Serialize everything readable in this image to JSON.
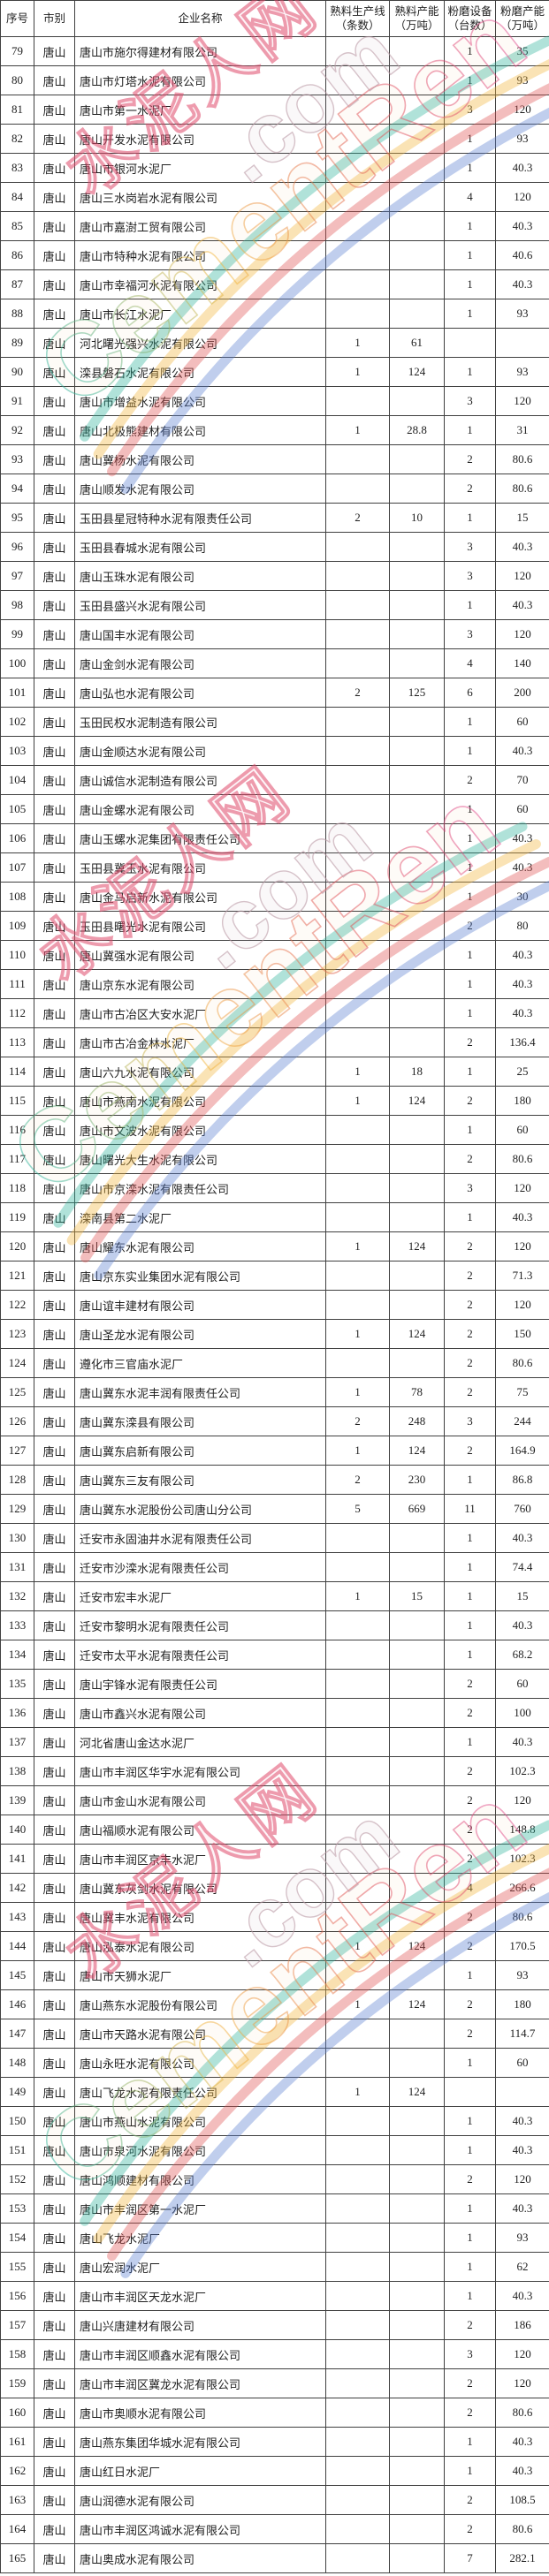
{
  "watermark": {
    "site_cn": "水泥人网",
    "site_en": "CementRen",
    "dot_com": ".com"
  },
  "table": {
    "columns": [
      "序号",
      "市别",
      "企业名称",
      "熟料生产线\n（条数）",
      "熟料产能\n（万吨）",
      "粉磨设备\n（台数）",
      "粉磨产能\n（万吨）"
    ],
    "rows": [
      [
        "79",
        "唐山",
        "唐山市施尔得建材有限公司",
        "",
        "",
        "1",
        "35"
      ],
      [
        "80",
        "唐山",
        "唐山市灯塔水泥有限公司",
        "",
        "",
        "1",
        "93"
      ],
      [
        "81",
        "唐山",
        "唐山市第一水泥厂",
        "",
        "",
        "3",
        "120"
      ],
      [
        "82",
        "唐山",
        "唐山开发水泥有限公司",
        "",
        "",
        "1",
        "93"
      ],
      [
        "83",
        "唐山",
        "唐山市银河水泥厂",
        "",
        "",
        "1",
        "40.3"
      ],
      [
        "84",
        "唐山",
        "唐山三水岗岩水泥有限公司",
        "",
        "",
        "4",
        "120"
      ],
      [
        "85",
        "唐山",
        "唐山市嘉澍工贸有限公司",
        "",
        "",
        "1",
        "40.3"
      ],
      [
        "86",
        "唐山",
        "唐山市特种水泥有限公司",
        "",
        "",
        "1",
        "40.6"
      ],
      [
        "87",
        "唐山",
        "唐山市幸福河水泥有限公司",
        "",
        "",
        "1",
        "40.3"
      ],
      [
        "88",
        "唐山",
        "唐山市长江水泥厂",
        "",
        "",
        "1",
        "93"
      ],
      [
        "89",
        "唐山",
        "河北曙光强兴水泥有限公司",
        "1",
        "61",
        "",
        ""
      ],
      [
        "90",
        "唐山",
        "滦县磐石水泥有限公司",
        "1",
        "124",
        "1",
        "93"
      ],
      [
        "91",
        "唐山",
        "唐山市增益水泥有限公司",
        "",
        "",
        "3",
        "120"
      ],
      [
        "92",
        "唐山",
        "唐山北极熊建材有限公司",
        "1",
        "28.8",
        "1",
        "31"
      ],
      [
        "93",
        "唐山",
        "唐山冀杨水泥有限公司",
        "",
        "",
        "2",
        "80.6"
      ],
      [
        "94",
        "唐山",
        "唐山顺发水泥有限公司",
        "",
        "",
        "2",
        "80.6"
      ],
      [
        "95",
        "唐山",
        "玉田县星冠特种水泥有限责任公司",
        "2",
        "10",
        "1",
        "15"
      ],
      [
        "96",
        "唐山",
        "玉田县春城水泥有限公司",
        "",
        "",
        "3",
        "40.3"
      ],
      [
        "97",
        "唐山",
        "唐山玉珠水泥有限公司",
        "",
        "",
        "3",
        "120"
      ],
      [
        "98",
        "唐山",
        "玉田县盛兴水泥有限公司",
        "",
        "",
        "1",
        "40.3"
      ],
      [
        "99",
        "唐山",
        "唐山国丰水泥有限公司",
        "",
        "",
        "3",
        "120"
      ],
      [
        "100",
        "唐山",
        "唐山金剑水泥有限公司",
        "",
        "",
        "4",
        "140"
      ],
      [
        "101",
        "唐山",
        "唐山弘也水泥有限公司",
        "2",
        "125",
        "6",
        "200"
      ],
      [
        "102",
        "唐山",
        "玉田民权水泥制造有限公司",
        "",
        "",
        "1",
        "60"
      ],
      [
        "103",
        "唐山",
        "唐山金顺达水泥有限公司",
        "",
        "",
        "1",
        "40.3"
      ],
      [
        "104",
        "唐山",
        "唐山诚信水泥制造有限公司",
        "",
        "",
        "2",
        "70"
      ],
      [
        "105",
        "唐山",
        "唐山金螺水泥有限公司",
        "",
        "",
        "1",
        "60"
      ],
      [
        "106",
        "唐山",
        "唐山玉螺水泥集团有限责任公司",
        "",
        "",
        "1",
        "40.3"
      ],
      [
        "107",
        "唐山",
        "玉田县冀玉水泥有限公司",
        "",
        "",
        "1",
        "40.3"
      ],
      [
        "108",
        "唐山",
        "唐山金马启新水泥有限公司",
        "",
        "",
        "1",
        "30"
      ],
      [
        "109",
        "唐山",
        "玉田县曙光水泥有限公司",
        "",
        "",
        "2",
        "80"
      ],
      [
        "110",
        "唐山",
        "唐山冀强水泥有限公司",
        "",
        "",
        "1",
        "40.3"
      ],
      [
        "111",
        "唐山",
        "唐山京东水泥有限公司",
        "",
        "",
        "1",
        "40.3"
      ],
      [
        "112",
        "唐山",
        "唐山市古冶区大安水泥厂",
        "",
        "",
        "1",
        "40.3"
      ],
      [
        "113",
        "唐山",
        "唐山市古冶金林水泥厂",
        "",
        "",
        "2",
        "136.4"
      ],
      [
        "114",
        "唐山",
        "唐山六九水泥有限公司",
        "1",
        "18",
        "1",
        "25"
      ],
      [
        "115",
        "唐山",
        "唐山市燕南水泥有限公司",
        "1",
        "124",
        "2",
        "180"
      ],
      [
        "116",
        "唐山",
        "唐山市文波水泥有限公司",
        "",
        "",
        "1",
        "60"
      ],
      [
        "117",
        "唐山",
        "唐山曙光大生水泥有限公司",
        "",
        "",
        "2",
        "80.6"
      ],
      [
        "118",
        "唐山",
        "唐山市京滦水泥有限责任公司",
        "",
        "",
        "3",
        "120"
      ],
      [
        "119",
        "唐山",
        "滦南县第二水泥厂",
        "",
        "",
        "1",
        "40.3"
      ],
      [
        "120",
        "唐山",
        "唐山耀东水泥有限公司",
        "1",
        "124",
        "2",
        "120"
      ],
      [
        "121",
        "唐山",
        "唐山京东实业集团水泥有限公司",
        "",
        "",
        "2",
        "71.3"
      ],
      [
        "122",
        "唐山",
        "唐山谊丰建材有限公司",
        "",
        "",
        "2",
        "120"
      ],
      [
        "123",
        "唐山",
        "唐山圣龙水泥有限公司",
        "1",
        "124",
        "2",
        "150"
      ],
      [
        "124",
        "唐山",
        "遵化市三官庙水泥厂",
        "",
        "",
        "2",
        "80.6"
      ],
      [
        "125",
        "唐山",
        "唐山冀东水泥丰润有限责任公司",
        "1",
        "78",
        "2",
        "75"
      ],
      [
        "126",
        "唐山",
        "唐山冀东滦县有限公司",
        "2",
        "248",
        "3",
        "244"
      ],
      [
        "127",
        "唐山",
        "唐山冀东启新有限公司",
        "1",
        "124",
        "2",
        "164.9"
      ],
      [
        "128",
        "唐山",
        "唐山冀东三友有限公司",
        "2",
        "230",
        "1",
        "86.8"
      ],
      [
        "129",
        "唐山",
        "唐山冀东水泥股份公司唐山分公司",
        "5",
        "669",
        "11",
        "760"
      ],
      [
        "130",
        "唐山",
        "迁安市永固油井水泥有限责任公司",
        "",
        "",
        "1",
        "40.3"
      ],
      [
        "131",
        "唐山",
        "迁安市沙滦水泥有限责任公司",
        "",
        "",
        "1",
        "74.4"
      ],
      [
        "132",
        "唐山",
        "迁安市宏丰水泥厂",
        "1",
        "15",
        "1",
        "15"
      ],
      [
        "133",
        "唐山",
        "迁安市黎明水泥有限责任公司",
        "",
        "",
        "1",
        "40.3"
      ],
      [
        "134",
        "唐山",
        "迁安市太平水泥有限责任公司",
        "",
        "",
        "1",
        "68.2"
      ],
      [
        "135",
        "唐山",
        "唐山宇锋水泥有限责任公司",
        "",
        "",
        "2",
        "60"
      ],
      [
        "136",
        "唐山",
        "唐山市鑫兴水泥有限公司",
        "",
        "",
        "2",
        "100"
      ],
      [
        "137",
        "唐山",
        "河北省唐山金达水泥厂",
        "",
        "",
        "1",
        "40.3"
      ],
      [
        "138",
        "唐山",
        "唐山市丰润区华宇水泥有限公司",
        "",
        "",
        "2",
        "102.3"
      ],
      [
        "139",
        "唐山",
        "唐山市金山水泥有限公司",
        "",
        "",
        "2",
        "120"
      ],
      [
        "140",
        "唐山",
        "唐山福顺水泥有限公司",
        "",
        "",
        "2",
        "148.8"
      ],
      [
        "141",
        "唐山",
        "唐山市丰润区京丰水泥厂",
        "",
        "",
        "2",
        "102.3"
      ],
      [
        "142",
        "唐山",
        "唐山冀东灰剑水泥有限公司",
        "",
        "",
        "4",
        "266.6"
      ],
      [
        "143",
        "唐山",
        "唐山冀丰水泥有限公司",
        "",
        "",
        "2",
        "80.6"
      ],
      [
        "144",
        "唐山",
        "唐山泓泰水泥有限公司",
        "1",
        "124",
        "2",
        "170.5"
      ],
      [
        "145",
        "唐山",
        "唐山市天狮水泥厂",
        "",
        "",
        "1",
        "93"
      ],
      [
        "146",
        "唐山",
        "唐山燕东水泥股份有限公司",
        "1",
        "124",
        "2",
        "180"
      ],
      [
        "147",
        "唐山",
        "唐山市天路水泥有限公司",
        "",
        "",
        "2",
        "114.7"
      ],
      [
        "148",
        "唐山",
        "唐山永旺水泥有限公司",
        "",
        "",
        "1",
        "60"
      ],
      [
        "149",
        "唐山",
        "唐山飞龙水泥有限责任公司",
        "1",
        "124",
        "",
        ""
      ],
      [
        "150",
        "唐山",
        "唐山市燕山水泥有限公司",
        "",
        "",
        "1",
        "40.3"
      ],
      [
        "151",
        "唐山",
        "唐山市泉河水泥有限公司",
        "",
        "",
        "1",
        "40.3"
      ],
      [
        "152",
        "唐山",
        "唐山鸿顺建材有限公司",
        "",
        "",
        "2",
        "120"
      ],
      [
        "153",
        "唐山",
        "唐山市丰润区第一水泥厂",
        "",
        "",
        "1",
        "40.3"
      ],
      [
        "154",
        "唐山",
        "唐山飞龙水泥厂",
        "",
        "",
        "1",
        "93"
      ],
      [
        "155",
        "唐山",
        "唐山宏润水泥厂",
        "",
        "",
        "1",
        "62"
      ],
      [
        "156",
        "唐山",
        "唐山市丰润区天龙水泥厂",
        "",
        "",
        "1",
        "40.3"
      ],
      [
        "157",
        "唐山",
        "唐山兴唐建材有限公司",
        "",
        "",
        "2",
        "186"
      ],
      [
        "158",
        "唐山",
        "唐山市丰润区顺鑫水泥有限公司",
        "",
        "",
        "3",
        "120"
      ],
      [
        "159",
        "唐山",
        "唐山市丰润区冀龙水泥有限公司",
        "",
        "",
        "2",
        "120"
      ],
      [
        "160",
        "唐山",
        "唐山市奥顺水泥有限公司",
        "",
        "",
        "2",
        "80.6"
      ],
      [
        "161",
        "唐山",
        "唐山燕东集团华城水泥有限公司",
        "",
        "",
        "1",
        "40.3"
      ],
      [
        "162",
        "唐山",
        "唐山红日水泥厂",
        "",
        "",
        "1",
        "40.3"
      ],
      [
        "163",
        "唐山",
        "唐山润德水泥有限公司",
        "",
        "",
        "2",
        "108.5"
      ],
      [
        "164",
        "唐山",
        "唐山市丰润区鸿诚水泥有限公司",
        "",
        "",
        "2",
        "80.6"
      ],
      [
        "165",
        "唐山",
        "唐山奥成水泥有限公司",
        "",
        "",
        "7",
        "282.1"
      ]
    ]
  }
}
